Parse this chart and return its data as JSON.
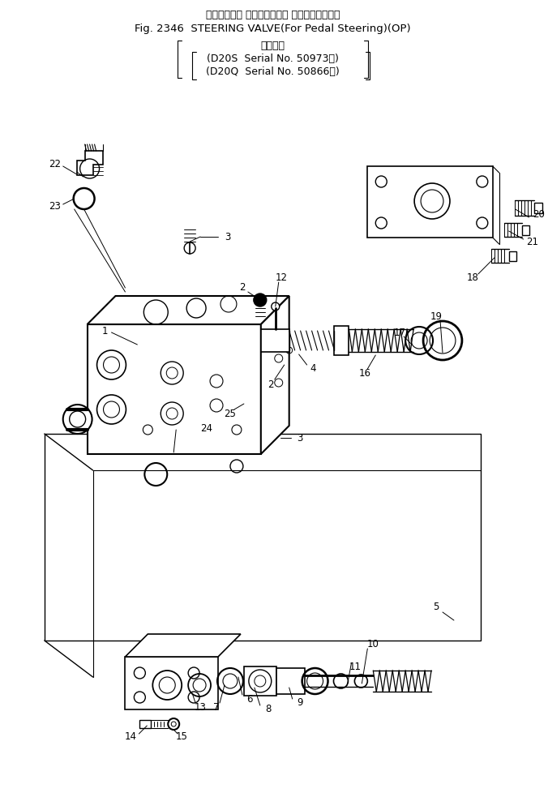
{
  "title_jp": "ステアリング バルブ（ペダル ステアリング用）",
  "title_en": "Fig. 2346  STEERING VALVE(For Pedal Steering)(OP)",
  "subtitle_jp": "適用号機",
  "subtitle_s": "(D20S  Serial No. 50973～)",
  "subtitle_q": "(D20Q  Serial No. 50866～)",
  "bg_color": "#ffffff",
  "fig_width": 6.76,
  "fig_height": 9.99,
  "dpi": 100
}
